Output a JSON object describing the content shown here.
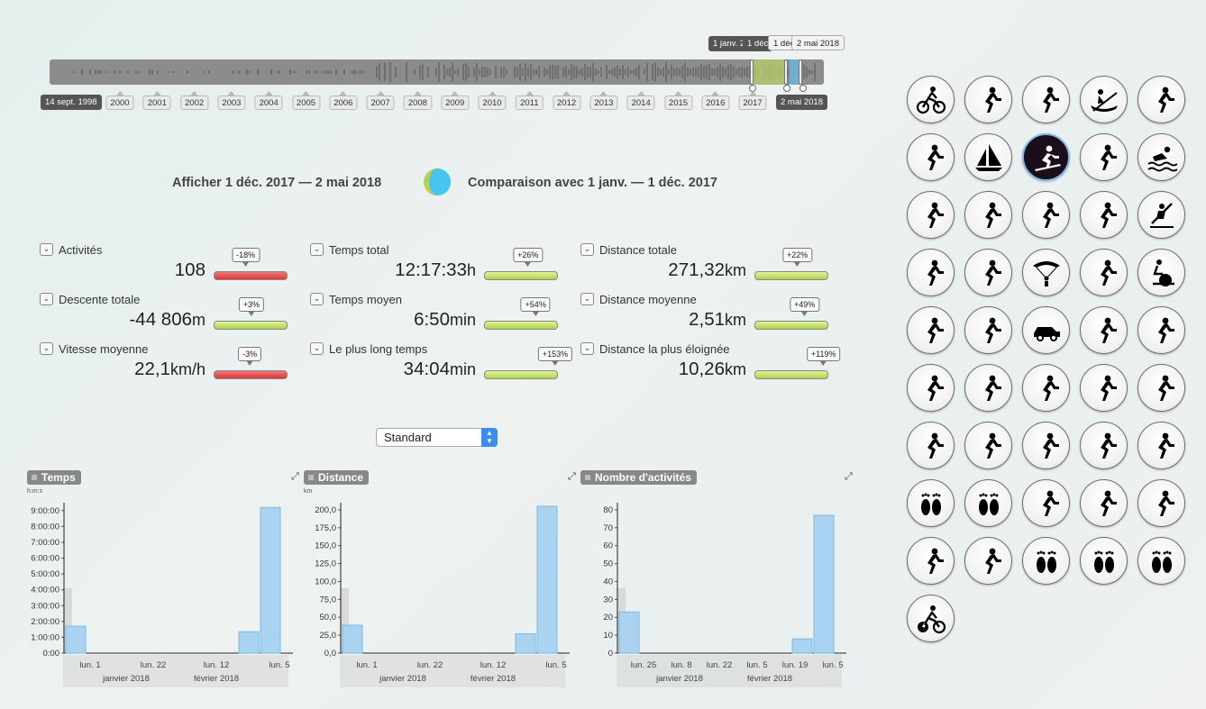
{
  "timeline": {
    "start_label": "14 sept. 1998",
    "end_label": "2 mai 2018",
    "years": [
      "2000",
      "2001",
      "2002",
      "2003",
      "2004",
      "2005",
      "2006",
      "2007",
      "2008",
      "2009",
      "2010",
      "2011",
      "2012",
      "2013",
      "2014",
      "2015",
      "2016",
      "2017"
    ],
    "flags": [
      "1 janv. 2",
      "1 déc",
      "1 déc",
      "2 mai 2018"
    ]
  },
  "header": {
    "show_range": "Afficher 1 déc. 2017 — 2 mai 2018",
    "compare_range": "Comparaison avec 1 janv. — 1 déc. 2017",
    "colors": {
      "current": "#b6d24a",
      "comparison": "#48c4f0"
    }
  },
  "stats": [
    {
      "label": "Activités",
      "value": "108",
      "unit": "",
      "change": "-18%",
      "trend": "negative"
    },
    {
      "label": "Temps total",
      "value": "12:17:33",
      "unit": "h",
      "change": "+26%",
      "trend": "positive"
    },
    {
      "label": "Distance totale",
      "value": "271,32",
      "unit": "km",
      "change": "+22%",
      "trend": "positive"
    },
    {
      "label": "Descente totale",
      "value": "-44 806",
      "unit": "m",
      "change": "+3%",
      "trend": "positive"
    },
    {
      "label": "Temps moyen",
      "value": "6:50",
      "unit": "min",
      "change": "+54%",
      "trend": "positive"
    },
    {
      "label": "Distance moyenne",
      "value": "2,51",
      "unit": "km",
      "change": "+49%",
      "trend": "positive"
    },
    {
      "label": "Vitesse moyenne",
      "value": "22,1",
      "unit": "km/h",
      "change": "-3%",
      "trend": "negative"
    },
    {
      "label": "Le plus long temps",
      "value": "34:04",
      "unit": "min",
      "change": "+153%",
      "trend": "positive"
    },
    {
      "label": "Distance la plus éloignée",
      "value": "10,26",
      "unit": "km",
      "change": "+119%",
      "trend": "positive"
    }
  ],
  "mode_select": {
    "value": "Standard"
  },
  "chart_data": [
    {
      "type": "bar",
      "title": "Temps",
      "unit": "h:m:s",
      "yticks": [
        "0:00",
        "1:00:00",
        "2:00:00",
        "3:00:00",
        "4:00:00",
        "5:00:00",
        "6:00:00",
        "7:00:00",
        "8:00:00",
        "9:00:00"
      ],
      "ylim": [
        0,
        9.5
      ],
      "xticks": [
        "lun. 1",
        "lun. 22",
        "lun. 12",
        "lun. 5"
      ],
      "months": [
        "janvier 2018",
        "février 2018"
      ],
      "values": [
        1.7,
        0,
        0,
        0,
        0,
        0,
        0,
        0,
        1.35,
        9.2
      ]
    },
    {
      "type": "bar",
      "title": "Distance",
      "unit": "km",
      "yticks": [
        "0,0",
        "25,0",
        "50,0",
        "75,0",
        "100,0",
        "125,0",
        "150,0",
        "175,0",
        "200,0"
      ],
      "ylim": [
        0,
        210
      ],
      "xticks": [
        "lun. 1",
        "lun. 22",
        "lun. 12",
        "lun. 5"
      ],
      "months": [
        "janvier 2018",
        "février 2018"
      ],
      "values": [
        39,
        0,
        0,
        0,
        0,
        0,
        0,
        0,
        27,
        205
      ]
    },
    {
      "type": "bar",
      "title": "Nombre d'activités",
      "unit": "",
      "yticks": [
        "0",
        "10",
        "20",
        "30",
        "40",
        "50",
        "60",
        "70",
        "80"
      ],
      "ylim": [
        0,
        84
      ],
      "xticks": [
        "lun. 25",
        "lun. 8",
        "lun. 22",
        "lun. 5",
        "lun. 19",
        "lun. 5"
      ],
      "months": [
        "janvier 2018",
        "février 2018"
      ],
      "values": [
        23,
        0,
        0,
        0,
        0,
        0,
        0,
        0,
        8,
        77
      ]
    }
  ],
  "activities": [
    "cycling",
    "mountaineering",
    "mountain-biking",
    "rowing",
    "running",
    "climbing-indoor",
    "sailing",
    "snowboarding",
    "nordic-skiing",
    "swimming",
    "walking",
    "climbing",
    "golf",
    "horse-riding",
    "kayaking",
    "basketball",
    "skiing",
    "skydiving",
    "hiking",
    "exercise-bike",
    "treadmill",
    "surfing",
    "driving",
    "hockey",
    "soccer",
    "badminton",
    "squash",
    "tennis",
    "gymnastics",
    "elliptical",
    "open-water",
    "petanque",
    "volleyball",
    "water-polo",
    "fitness",
    "barefoot",
    "barefoot",
    "paddleboarding",
    "water-skiing",
    "climbing-speed",
    "yoga",
    "stair-climbing",
    "barefoot",
    "barefoot",
    "barefoot",
    "e-bike"
  ],
  "selected_activity": "snowboarding"
}
